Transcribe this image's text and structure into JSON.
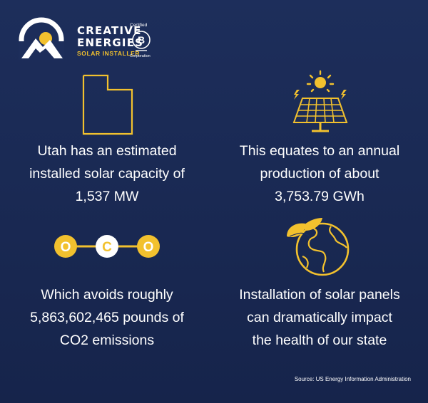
{
  "brand": {
    "line1": "CREATIVE",
    "line2": "ENERGIES",
    "tagline": "SOLAR INSTALLER",
    "cert_top": "Certified",
    "cert_letter": "B",
    "cert_bottom": "Corporation"
  },
  "stats": [
    {
      "icon": "utah-outline-icon",
      "lines": [
        "Utah has an estimated",
        "installed solar capacity of",
        "1,537 MW"
      ]
    },
    {
      "icon": "solar-panel-sun-icon",
      "lines": [
        "This equates to an annual",
        "production of about",
        "3,753.79 GWh"
      ]
    },
    {
      "icon": "co2-molecule-icon",
      "molecule": [
        "O",
        "C",
        "O"
      ],
      "lines": [
        "Which avoids roughly",
        "5,863,602,465 pounds of",
        "CO2 emissions"
      ]
    },
    {
      "icon": "earth-leaf-icon",
      "lines": [
        "Installation of solar panels",
        "can dramatically impact",
        "the health of our state"
      ]
    }
  ],
  "source": "Source:  US Energy Information Administration",
  "colors": {
    "background": "#1d2e5b",
    "accent": "#f2c12e",
    "text": "#ffffff"
  }
}
